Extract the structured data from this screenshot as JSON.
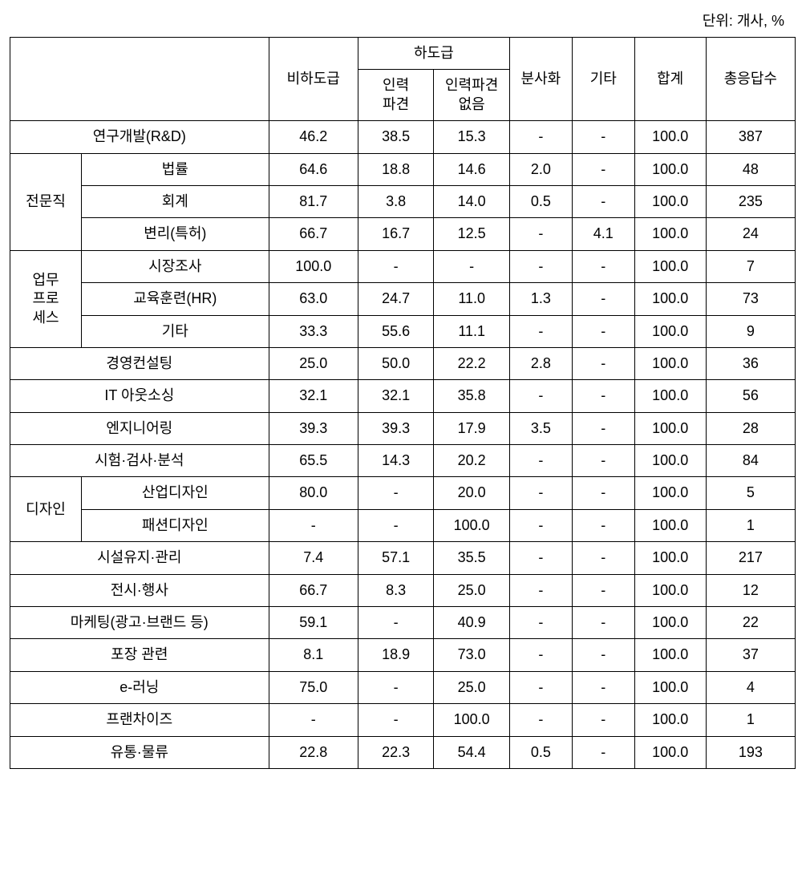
{
  "unit_label": "단위: 개사, %",
  "headers": {
    "col_empty": "",
    "col_non_subcontract": "비하도급",
    "col_subcontract_group": "하도급",
    "col_dispatch": "인력\n파견",
    "col_no_dispatch": "인력파견\n없음",
    "col_spinoff": "분사화",
    "col_other": "기타",
    "col_total": "합계",
    "col_responses": "총응답수"
  },
  "groups": {
    "professional": "전문직",
    "process": "업무\n프로\n세스",
    "design": "디자인"
  },
  "rows": [
    {
      "label": "연구개발(R&D)",
      "v": [
        "46.2",
        "38.5",
        "15.3",
        "-",
        "-",
        "100.0",
        "387"
      ]
    },
    {
      "label": "법률",
      "v": [
        "64.6",
        "18.8",
        "14.6",
        "2.0",
        "-",
        "100.0",
        "48"
      ]
    },
    {
      "label": "회계",
      "v": [
        "81.7",
        "3.8",
        "14.0",
        "0.5",
        "-",
        "100.0",
        "235"
      ]
    },
    {
      "label": "변리(특허)",
      "v": [
        "66.7",
        "16.7",
        "12.5",
        "-",
        "4.1",
        "100.0",
        "24"
      ]
    },
    {
      "label": "시장조사",
      "v": [
        "100.0",
        "-",
        "-",
        "-",
        "-",
        "100.0",
        "7"
      ]
    },
    {
      "label": "교육훈련(HR)",
      "v": [
        "63.0",
        "24.7",
        "11.0",
        "1.3",
        "-",
        "100.0",
        "73"
      ]
    },
    {
      "label": "기타",
      "v": [
        "33.3",
        "55.6",
        "11.1",
        "-",
        "-",
        "100.0",
        "9"
      ]
    },
    {
      "label": "경영컨설팅",
      "v": [
        "25.0",
        "50.0",
        "22.2",
        "2.8",
        "-",
        "100.0",
        "36"
      ]
    },
    {
      "label": "IT 아웃소싱",
      "v": [
        "32.1",
        "32.1",
        "35.8",
        "-",
        "-",
        "100.0",
        "56"
      ]
    },
    {
      "label": "엔지니어링",
      "v": [
        "39.3",
        "39.3",
        "17.9",
        "3.5",
        "-",
        "100.0",
        "28"
      ]
    },
    {
      "label": "시험·검사·분석",
      "v": [
        "65.5",
        "14.3",
        "20.2",
        "-",
        "-",
        "100.0",
        "84"
      ]
    },
    {
      "label": "산업디자인",
      "v": [
        "80.0",
        "-",
        "20.0",
        "-",
        "-",
        "100.0",
        "5"
      ]
    },
    {
      "label": "패션디자인",
      "v": [
        "-",
        "-",
        "100.0",
        "-",
        "-",
        "100.0",
        "1"
      ]
    },
    {
      "label": "시설유지·관리",
      "v": [
        "7.4",
        "57.1",
        "35.5",
        "-",
        "-",
        "100.0",
        "217"
      ]
    },
    {
      "label": "전시·행사",
      "v": [
        "66.7",
        "8.3",
        "25.0",
        "-",
        "-",
        "100.0",
        "12"
      ]
    },
    {
      "label": "마케팅(광고·브랜드 등)",
      "v": [
        "59.1",
        "-",
        "40.9",
        "-",
        "-",
        "100.0",
        "22"
      ]
    },
    {
      "label": "포장 관련",
      "v": [
        "8.1",
        "18.9",
        "73.0",
        "-",
        "-",
        "100.0",
        "37"
      ]
    },
    {
      "label": "e-러닝",
      "v": [
        "75.0",
        "-",
        "25.0",
        "-",
        "-",
        "100.0",
        "4"
      ]
    },
    {
      "label": "프랜차이즈",
      "v": [
        "-",
        "-",
        "100.0",
        "-",
        "-",
        "100.0",
        "1"
      ]
    },
    {
      "label": "유통·물류",
      "v": [
        "22.8",
        "22.3",
        "54.4",
        "0.5",
        "-",
        "100.0",
        "193"
      ]
    }
  ]
}
